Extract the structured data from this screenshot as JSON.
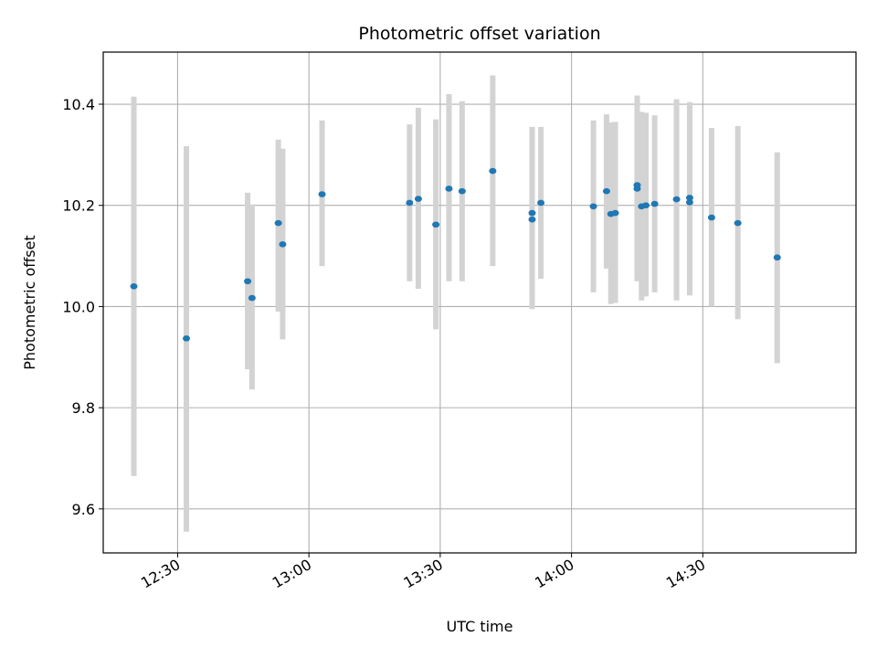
{
  "chart_data": {
    "type": "scatter",
    "title": "Photometric offset variation",
    "xlabel": "UTC time",
    "ylabel": "Photometric offset",
    "grid": true,
    "legend": "none",
    "x_unit": "UTC time (HH:MM)",
    "xlim": [
      "12:13",
      "15:05"
    ],
    "ylim": [
      9.513,
      10.503
    ],
    "xticks": [
      "12:30",
      "13:00",
      "13:30",
      "14:00",
      "14:30"
    ],
    "yticks": [
      9.6,
      9.8,
      10.0,
      10.2,
      10.4
    ],
    "ytick_labels": [
      "9.6",
      "9.8",
      "10.0",
      "10.2",
      "10.4"
    ],
    "colors": {
      "point": "#1f77b4",
      "errorbar": "#d3d3d3",
      "grid": "#b0b0b0",
      "axes": "#000000"
    },
    "series": [
      {
        "x": [
          "12:20",
          "12:32",
          "12:46",
          "12:47",
          "12:53",
          "12:54",
          "13:03",
          "13:23",
          "13:25",
          "13:29",
          "13:32",
          "13:35",
          "13:42",
          "13:51",
          "13:51",
          "13:53",
          "14:05",
          "14:08",
          "14:09",
          "14:10",
          "14:15",
          "14:15",
          "14:16",
          "14:17",
          "14:19",
          "14:24",
          "14:27",
          "14:27",
          "14:32",
          "14:38",
          "14:47"
        ],
        "y": [
          10.04,
          9.937,
          10.05,
          10.017,
          10.165,
          10.123,
          10.222,
          10.205,
          10.213,
          10.162,
          10.233,
          10.228,
          10.268,
          10.185,
          10.172,
          10.205,
          10.198,
          10.228,
          10.183,
          10.185,
          10.233,
          10.24,
          10.198,
          10.2,
          10.203,
          10.212,
          10.206,
          10.215,
          10.176,
          10.165,
          10.097
        ],
        "yerr_low": [
          9.665,
          9.555,
          9.876,
          9.836,
          9.99,
          9.935,
          10.08,
          10.05,
          10.035,
          9.955,
          10.05,
          10.05,
          10.08,
          10.015,
          9.995,
          10.055,
          10.028,
          10.075,
          10.005,
          10.007,
          10.05,
          10.06,
          10.012,
          10.02,
          10.028,
          10.012,
          10.022,
          10.03,
          10.0,
          9.975,
          9.888
        ],
        "yerr_high": [
          10.415,
          10.317,
          10.225,
          10.202,
          10.33,
          10.312,
          10.368,
          10.36,
          10.393,
          10.37,
          10.42,
          10.406,
          10.457,
          10.355,
          10.352,
          10.355,
          10.368,
          10.38,
          10.364,
          10.365,
          10.417,
          10.417,
          10.385,
          10.383,
          10.378,
          10.41,
          10.398,
          10.404,
          10.353,
          10.357,
          10.305
        ]
      }
    ]
  }
}
